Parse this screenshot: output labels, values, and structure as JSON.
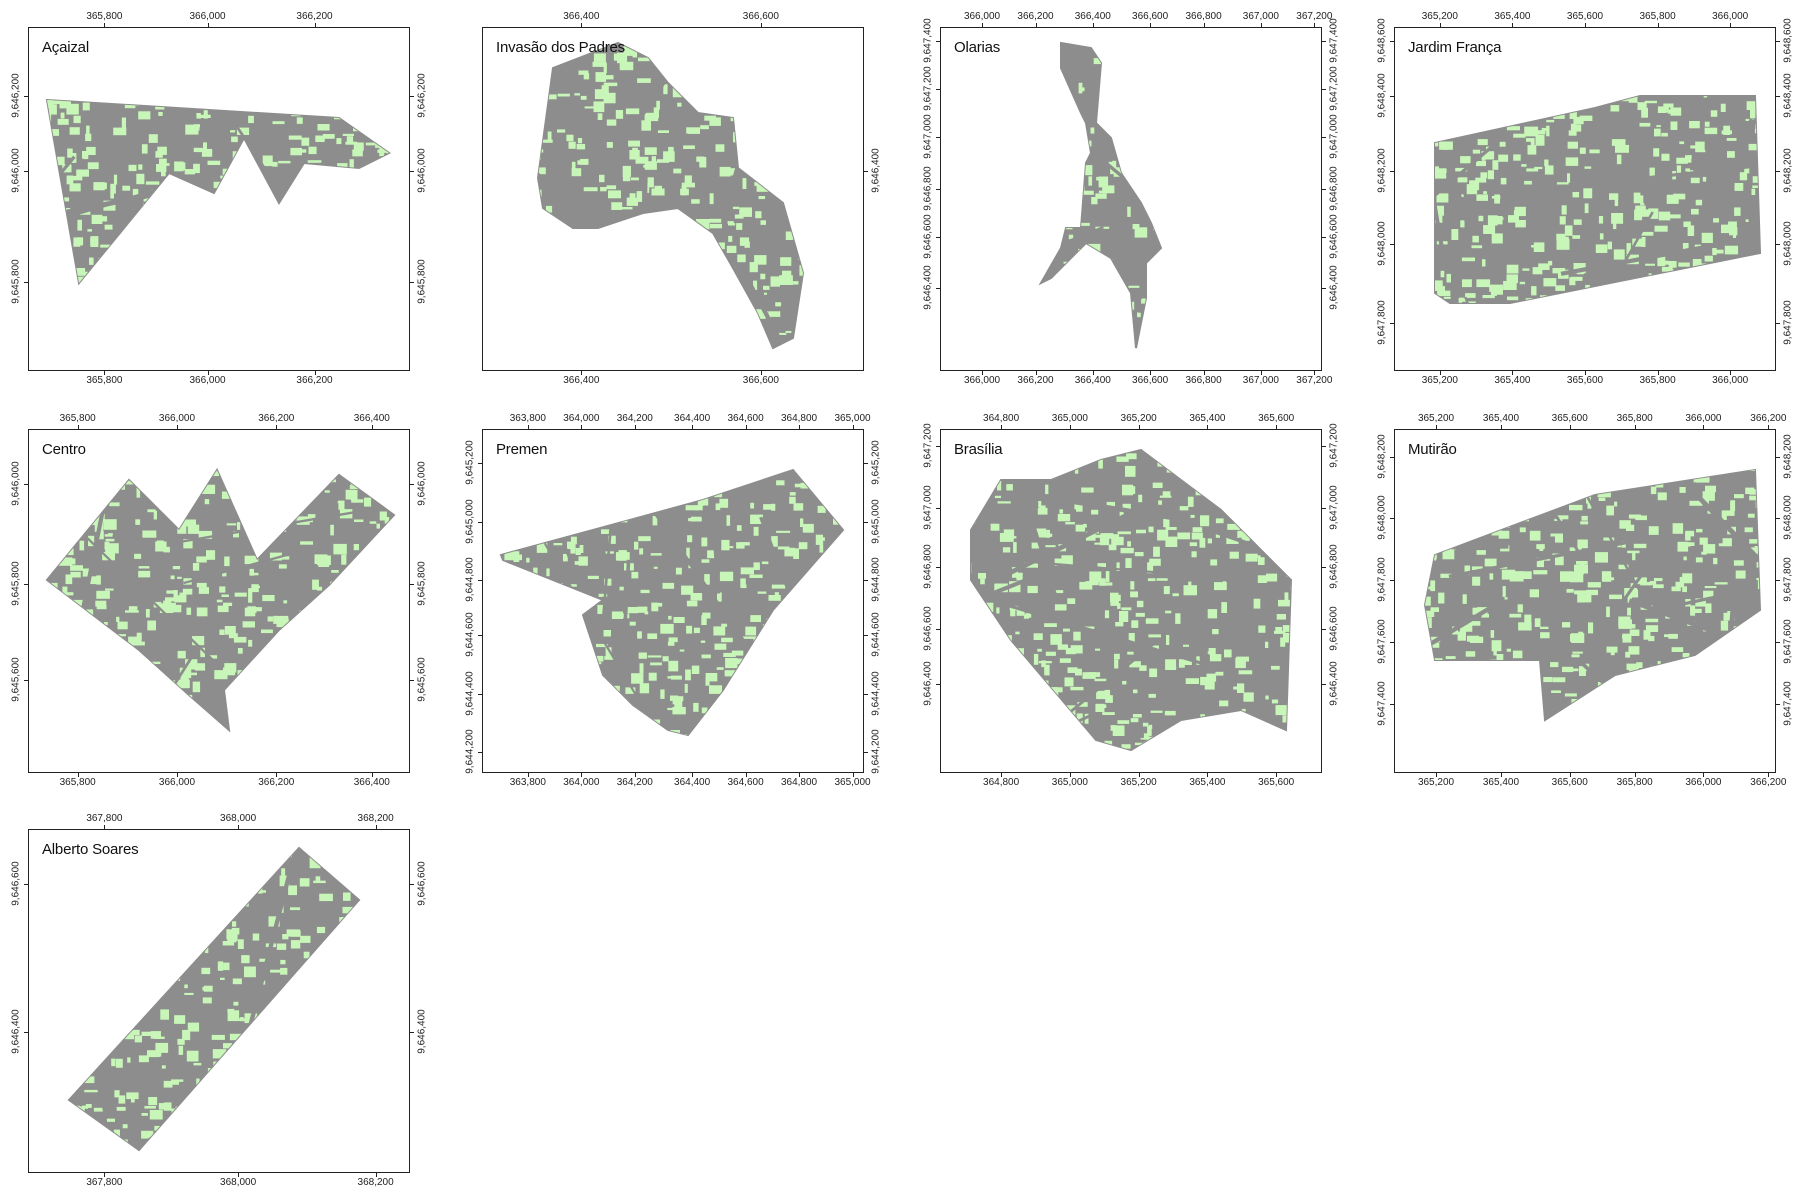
{
  "colors": {
    "vegetation": "#c8f5b8",
    "urban": "#8d8d8d",
    "frame": "#222222"
  },
  "panels": [
    {
      "title": "Açaizal",
      "x_ticks": [
        "365,800",
        "366,000",
        "366,200"
      ],
      "y_ticks_left": [
        "9,645,800",
        "9,646,000",
        "9,646,200"
      ],
      "y_ticks_right": [
        "9,645,800",
        "9,646,000",
        "9,646,200"
      ]
    },
    {
      "title": "Invasão dos Padres",
      "x_ticks": [
        "366,400",
        "366,600"
      ],
      "y_ticks_left": [],
      "y_ticks_right": [
        "9,646,400"
      ]
    },
    {
      "title": "Olarias",
      "x_ticks": [
        "366,000",
        "366,200",
        "366,400",
        "366,600",
        "366,800",
        "367,000",
        "367,200"
      ],
      "y_ticks_left": [
        "9,646,400",
        "9,646,600",
        "9,646,800",
        "9,647,000",
        "9,647,200",
        "9,647,400"
      ],
      "y_ticks_right": [
        "9,646,400",
        "9,646,600",
        "9,646,800",
        "9,647,000",
        "9,647,200",
        "9,647,400"
      ]
    },
    {
      "title": "Jardim França",
      "x_ticks": [
        "365,200",
        "365,400",
        "365,600",
        "365,800",
        "366,000"
      ],
      "y_ticks_left": [
        "9,647,800",
        "9,648,000",
        "9,648,200",
        "9,648,400",
        "9,648,600"
      ],
      "y_ticks_right": [
        "9,647,800",
        "9,648,000",
        "9,648,200",
        "9,648,400",
        "9,648,600"
      ]
    },
    {
      "title": "Centro",
      "x_ticks": [
        "365,800",
        "366,000",
        "366,200",
        "366,400"
      ],
      "y_ticks_left": [
        "9,645,600",
        "9,645,800",
        "9,646,000"
      ],
      "y_ticks_right": [
        "9,645,600",
        "9,645,800",
        "9,646,000"
      ]
    },
    {
      "title": "Premen",
      "x_ticks": [
        "363,800",
        "364,000",
        "364,200",
        "364,400",
        "364,600",
        "364,800",
        "365,000"
      ],
      "y_ticks_left": [
        "9,644,200",
        "9,644,400",
        "9,644,600",
        "9,644,800",
        "9,645,000",
        "9,645,200"
      ],
      "y_ticks_right": [
        "9,644,200",
        "9,644,400",
        "9,644,600",
        "9,644,800",
        "9,645,000",
        "9,645,200"
      ]
    },
    {
      "title": "Brasília",
      "x_ticks": [
        "364,800",
        "365,000",
        "365,200",
        "365,400",
        "365,600"
      ],
      "y_ticks_left": [
        "9,646,400",
        "9,646,600",
        "9,646,800",
        "9,647,000",
        "9,647,200"
      ],
      "y_ticks_right": [
        "9,646,400",
        "9,646,600",
        "9,646,800",
        "9,647,000",
        "9,647,200"
      ]
    },
    {
      "title": "Mutirão",
      "x_ticks": [
        "365,200",
        "365,400",
        "365,600",
        "365,800",
        "366,000",
        "366,200"
      ],
      "y_ticks_left": [
        "9,647,400",
        "9,647,600",
        "9,647,800",
        "9,648,000",
        "9,648,200"
      ],
      "y_ticks_right": [
        "9,647,400",
        "9,647,600",
        "9,647,800",
        "9,648,000",
        "9,648,200"
      ]
    },
    {
      "title": "Alberto Soares",
      "x_ticks": [
        "367,800",
        "368,000",
        "368,200"
      ],
      "y_ticks_left": [
        "9,646,400",
        "9,646,600"
      ],
      "y_ticks_right": [
        "9,646,400",
        "9,646,600"
      ]
    }
  ]
}
